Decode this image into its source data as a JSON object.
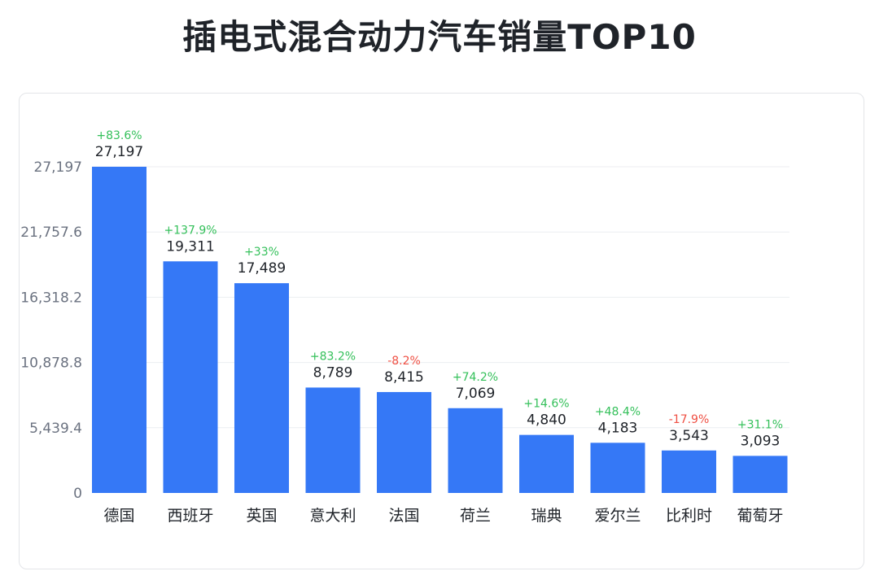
{
  "chart_data": {
    "type": "bar",
    "title": "插电式混合动力汽车销量TOP10",
    "categories": [
      "德国",
      "西班牙",
      "英国",
      "意大利",
      "法国",
      "荷兰",
      "瑞典",
      "爱尔兰",
      "比利时",
      "葡萄牙"
    ],
    "values": [
      27197,
      19311,
      17489,
      8789,
      8415,
      7069,
      4840,
      4183,
      3543,
      3093
    ],
    "value_labels": [
      "27,197",
      "19,311",
      "17,489",
      "8,789",
      "8,415",
      "7,069",
      "4,840",
      "4,183",
      "3,543",
      "3,093"
    ],
    "growth_labels": [
      "+83.6%",
      "+137.9%",
      "+33%",
      "+83.2%",
      "-8.2%",
      "+74.2%",
      "+14.6%",
      "+48.4%",
      "-17.9%",
      "+31.1%"
    ],
    "yticks": [
      0,
      5439.4,
      10878.8,
      16318.2,
      21757.6,
      27197
    ],
    "ytick_labels": [
      "0",
      "5,439.4",
      "10,878.8",
      "16,318.2",
      "21,757.6",
      "27,197"
    ],
    "ylim": [
      0,
      27197
    ],
    "grid": true,
    "xlabel": "",
    "ylabel": "",
    "colors": {
      "bar": "#3578f6",
      "positive": "#34c05a",
      "negative": "#ef4f43",
      "grid": "#eceef1"
    }
  }
}
